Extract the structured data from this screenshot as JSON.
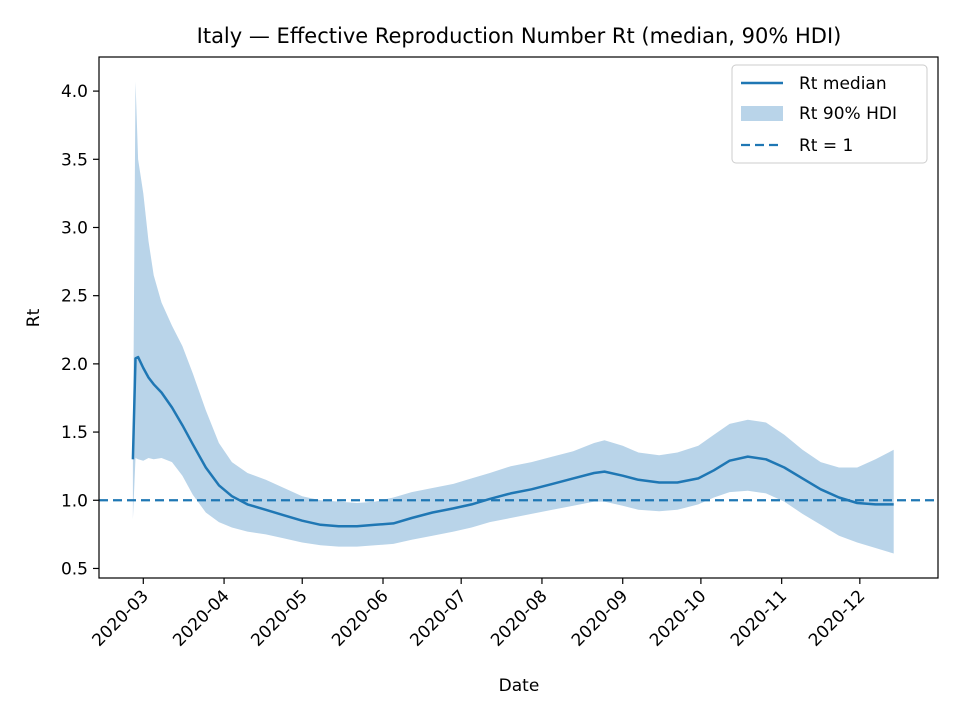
{
  "chart_data": {
    "type": "line",
    "title": "Italy — Effective Reproduction Number Rt (median, 90% HDI)",
    "xlabel": "Date",
    "ylabel": "Rt",
    "x_ticks": [
      "2020-03",
      "2020-04",
      "2020-05",
      "2020-06",
      "2020-07",
      "2020-08",
      "2020-09",
      "2020-10",
      "2020-11",
      "2020-12"
    ],
    "y_ticks": [
      "0.5",
      "1.0",
      "1.5",
      "2.0",
      "2.5",
      "3.0",
      "3.5",
      "4.0"
    ],
    "xlim": [
      "2020-02-13",
      "2020-12-31"
    ],
    "ylim": [
      0.43,
      4.25
    ],
    "grid": false,
    "legend_position": "top-right",
    "colors": {
      "median": "#1f77b4",
      "hdi": "#b9d4e9",
      "reference": "#1f77b4"
    },
    "series": [
      {
        "name": "Rt median",
        "kind": "line",
        "points": [
          [
            "2020-02-26",
            1.3
          ],
          [
            "2020-02-27",
            2.04
          ],
          [
            "2020-02-28",
            2.05
          ],
          [
            "2020-03-01",
            1.97
          ],
          [
            "2020-03-03",
            1.9
          ],
          [
            "2020-03-05",
            1.85
          ],
          [
            "2020-03-08",
            1.79
          ],
          [
            "2020-03-12",
            1.68
          ],
          [
            "2020-03-16",
            1.55
          ],
          [
            "2020-03-20",
            1.41
          ],
          [
            "2020-03-25",
            1.24
          ],
          [
            "2020-03-30",
            1.11
          ],
          [
            "2020-04-04",
            1.03
          ],
          [
            "2020-04-10",
            0.97
          ],
          [
            "2020-04-17",
            0.93
          ],
          [
            "2020-04-24",
            0.89
          ],
          [
            "2020-05-01",
            0.85
          ],
          [
            "2020-05-08",
            0.82
          ],
          [
            "2020-05-15",
            0.81
          ],
          [
            "2020-05-22",
            0.81
          ],
          [
            "2020-05-29",
            0.82
          ],
          [
            "2020-06-05",
            0.83
          ],
          [
            "2020-06-12",
            0.87
          ],
          [
            "2020-06-20",
            0.91
          ],
          [
            "2020-06-28",
            0.94
          ],
          [
            "2020-07-05",
            0.97
          ],
          [
            "2020-07-12",
            1.01
          ],
          [
            "2020-07-20",
            1.05
          ],
          [
            "2020-07-28",
            1.08
          ],
          [
            "2020-08-05",
            1.12
          ],
          [
            "2020-08-13",
            1.16
          ],
          [
            "2020-08-21",
            1.2
          ],
          [
            "2020-08-25",
            1.21
          ],
          [
            "2020-09-01",
            1.18
          ],
          [
            "2020-09-07",
            1.15
          ],
          [
            "2020-09-15",
            1.13
          ],
          [
            "2020-09-22",
            1.13
          ],
          [
            "2020-09-30",
            1.16
          ],
          [
            "2020-10-06",
            1.22
          ],
          [
            "2020-10-12",
            1.29
          ],
          [
            "2020-10-19",
            1.32
          ],
          [
            "2020-10-26",
            1.3
          ],
          [
            "2020-11-02",
            1.24
          ],
          [
            "2020-11-09",
            1.16
          ],
          [
            "2020-11-16",
            1.08
          ],
          [
            "2020-11-23",
            1.02
          ],
          [
            "2020-11-30",
            0.98
          ],
          [
            "2020-12-07",
            0.97
          ],
          [
            "2020-12-14",
            0.97
          ]
        ]
      },
      {
        "name": "Rt 90% HDI",
        "kind": "band",
        "points": [
          [
            "2020-02-26",
            0.86,
            1.3
          ],
          [
            "2020-02-27",
            1.31,
            4.07
          ],
          [
            "2020-02-28",
            1.3,
            3.5
          ],
          [
            "2020-03-01",
            1.29,
            3.25
          ],
          [
            "2020-03-03",
            1.31,
            2.9
          ],
          [
            "2020-03-05",
            1.3,
            2.65
          ],
          [
            "2020-03-08",
            1.31,
            2.45
          ],
          [
            "2020-03-12",
            1.28,
            2.28
          ],
          [
            "2020-03-16",
            1.18,
            2.13
          ],
          [
            "2020-03-20",
            1.04,
            1.93
          ],
          [
            "2020-03-25",
            0.91,
            1.66
          ],
          [
            "2020-03-30",
            0.84,
            1.42
          ],
          [
            "2020-04-04",
            0.8,
            1.28
          ],
          [
            "2020-04-10",
            0.77,
            1.2
          ],
          [
            "2020-04-17",
            0.75,
            1.15
          ],
          [
            "2020-04-24",
            0.72,
            1.09
          ],
          [
            "2020-05-01",
            0.69,
            1.03
          ],
          [
            "2020-05-08",
            0.67,
            1.0
          ],
          [
            "2020-05-15",
            0.66,
            0.99
          ],
          [
            "2020-05-22",
            0.66,
            0.98
          ],
          [
            "2020-05-29",
            0.67,
            0.99
          ],
          [
            "2020-06-05",
            0.68,
            1.02
          ],
          [
            "2020-06-12",
            0.71,
            1.06
          ],
          [
            "2020-06-20",
            0.74,
            1.09
          ],
          [
            "2020-06-28",
            0.77,
            1.12
          ],
          [
            "2020-07-05",
            0.8,
            1.16
          ],
          [
            "2020-07-12",
            0.84,
            1.2
          ],
          [
            "2020-07-20",
            0.87,
            1.25
          ],
          [
            "2020-07-28",
            0.9,
            1.28
          ],
          [
            "2020-08-05",
            0.93,
            1.32
          ],
          [
            "2020-08-13",
            0.96,
            1.36
          ],
          [
            "2020-08-21",
            0.99,
            1.42
          ],
          [
            "2020-08-25",
            0.99,
            1.44
          ],
          [
            "2020-09-01",
            0.96,
            1.4
          ],
          [
            "2020-09-07",
            0.93,
            1.35
          ],
          [
            "2020-09-15",
            0.92,
            1.33
          ],
          [
            "2020-09-22",
            0.93,
            1.35
          ],
          [
            "2020-09-30",
            0.97,
            1.4
          ],
          [
            "2020-10-06",
            1.02,
            1.48
          ],
          [
            "2020-10-12",
            1.06,
            1.56
          ],
          [
            "2020-10-19",
            1.07,
            1.59
          ],
          [
            "2020-10-26",
            1.05,
            1.57
          ],
          [
            "2020-11-02",
            0.99,
            1.48
          ],
          [
            "2020-11-09",
            0.9,
            1.37
          ],
          [
            "2020-11-16",
            0.82,
            1.28
          ],
          [
            "2020-11-23",
            0.74,
            1.24
          ],
          [
            "2020-11-30",
            0.69,
            1.24
          ],
          [
            "2020-12-07",
            0.65,
            1.3
          ],
          [
            "2020-12-14",
            0.61,
            1.37
          ]
        ]
      },
      {
        "name": "Rt = 1",
        "kind": "hline",
        "y": 1.0
      }
    ]
  }
}
